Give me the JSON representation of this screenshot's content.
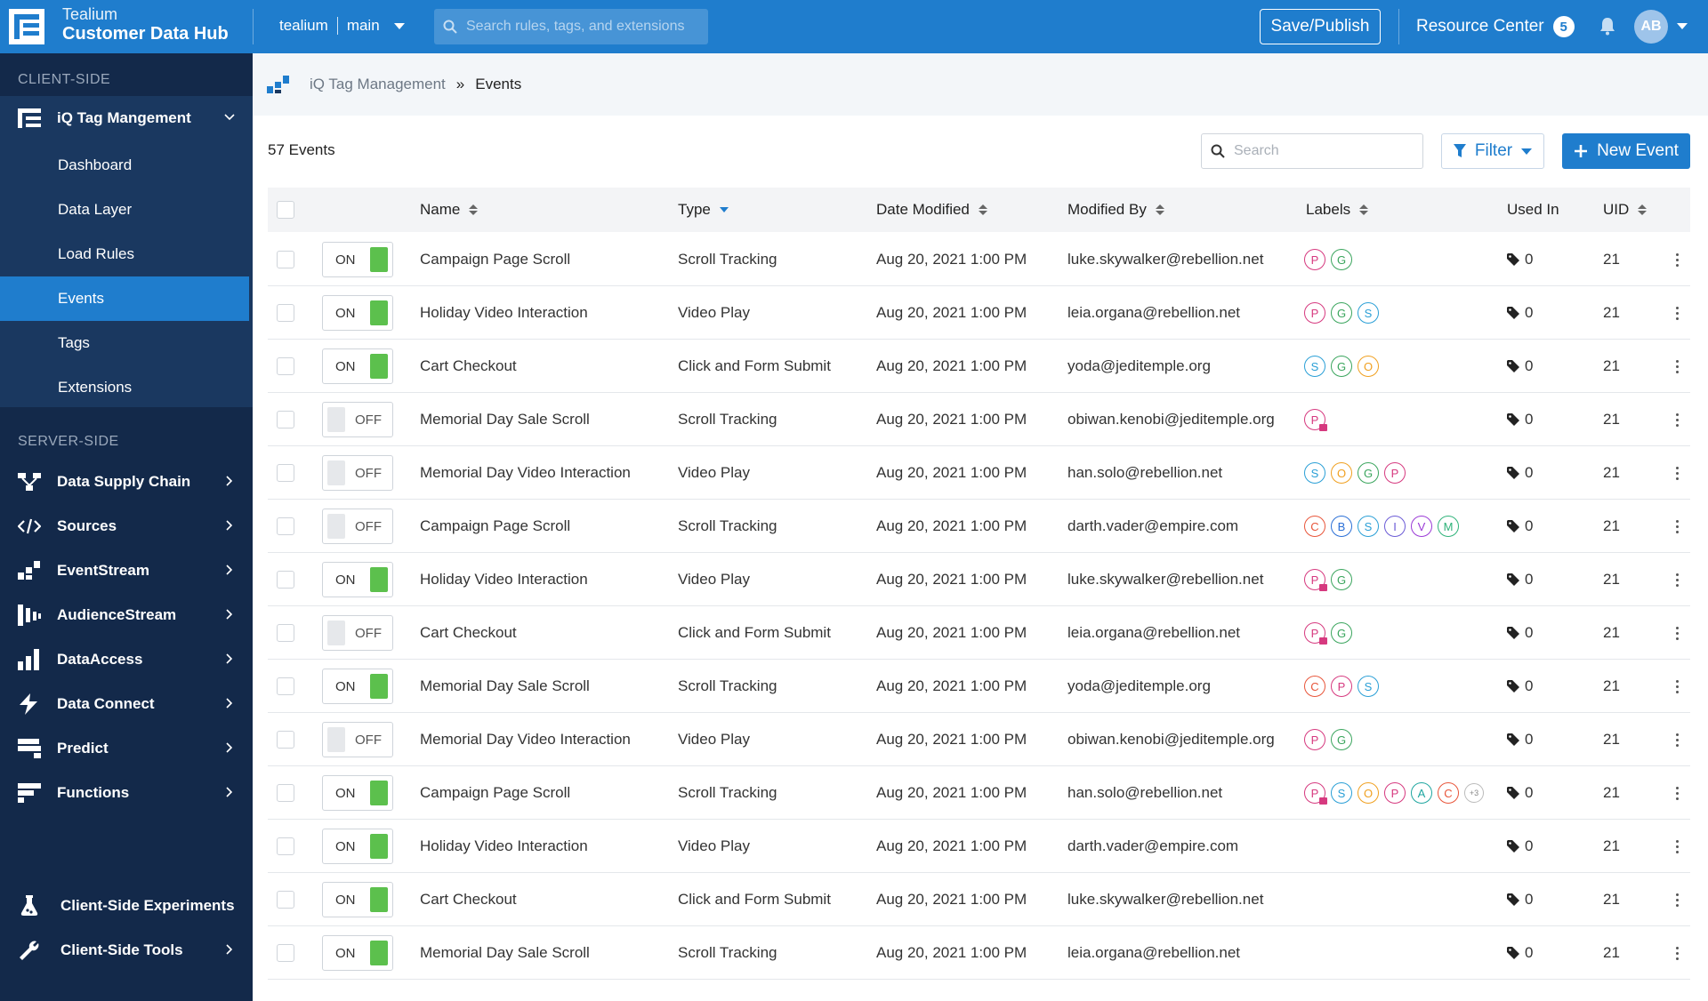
{
  "header": {
    "brand_line1": "Tealium",
    "brand_line2": "Customer Data Hub",
    "account": "tealium",
    "profile": "main",
    "search_placeholder": "Search rules, tags, and extensions",
    "save_label": "Save/Publish",
    "resource_center": "Resource Center",
    "resource_count": "5",
    "avatar_initials": "AB"
  },
  "sidebar": {
    "client_title": "CLIENT-SIDE",
    "iq_label": "iQ Tag Mangement",
    "sub_items": [
      {
        "label": "Dashboard"
      },
      {
        "label": "Data Layer"
      },
      {
        "label": "Load Rules"
      },
      {
        "label": "Events"
      },
      {
        "label": "Tags"
      },
      {
        "label": "Extensions"
      }
    ],
    "server_title": "SERVER-SIDE",
    "server_items": [
      {
        "label": "Data Supply Chain",
        "icon": "data-supply-chain-icon"
      },
      {
        "label": "Sources",
        "icon": "sources-code-icon"
      },
      {
        "label": "EventStream",
        "icon": "eventstream-icon"
      },
      {
        "label": "AudienceStream",
        "icon": "audiencestream-icon"
      },
      {
        "label": "DataAccess",
        "icon": "dataaccess-bar-icon"
      },
      {
        "label": "Data Connect",
        "icon": "data-connect-icon"
      },
      {
        "label": "Predict",
        "icon": "predict-icon"
      },
      {
        "label": "Functions",
        "icon": "functions-icon"
      }
    ],
    "bottom_items": [
      {
        "label": "Client-Side Experiments"
      },
      {
        "label": "Client-Side Tools"
      }
    ]
  },
  "breadcrumb": {
    "parent": "iQ Tag Management",
    "separator": "»",
    "current": "Events"
  },
  "toolbar": {
    "count_label": "57 Events",
    "search_placeholder": "Search",
    "filter_label": "Filter",
    "new_label": "New Event"
  },
  "table": {
    "columns": {
      "name": "Name",
      "type": "Type",
      "date": "Date Modified",
      "modified_by": "Modified By",
      "labels": "Labels",
      "used_in": "Used In",
      "uid": "UID"
    },
    "rows": [
      {
        "status": "ON",
        "name": "Campaign Page Scroll",
        "type": "Scroll Tracking",
        "date": "Aug 20, 2021 1:00 PM",
        "by": "luke.skywalker@rebellion.net",
        "labels": [
          "P",
          "G"
        ],
        "used": "0",
        "uid": "21"
      },
      {
        "status": "ON",
        "name": "Holiday Video Interaction",
        "type": "Video Play",
        "date": "Aug 20, 2021 1:00 PM",
        "by": "leia.organa@rebellion.net",
        "labels": [
          "P",
          "G",
          "S"
        ],
        "used": "0",
        "uid": "21"
      },
      {
        "status": "ON",
        "name": "Cart Checkout",
        "type": "Click and Form Submit",
        "date": "Aug 20, 2021 1:00 PM",
        "by": "yoda@jeditemple.org",
        "labels": [
          "S",
          "G",
          "O"
        ],
        "used": "0",
        "uid": "21"
      },
      {
        "status": "OFF",
        "name": "Memorial Day Sale Scroll",
        "type": "Scroll Tracking",
        "date": "Aug 20, 2021 1:00 PM",
        "by": "obiwan.kenobi@jeditemple.org",
        "labels": [
          "P*"
        ],
        "used": "0",
        "uid": "21"
      },
      {
        "status": "OFF",
        "name": "Memorial Day Video Interaction",
        "type": "Video Play",
        "date": "Aug 20, 2021 1:00 PM",
        "by": "han.solo@rebellion.net",
        "labels": [
          "S",
          "O",
          "G",
          "P"
        ],
        "used": "0",
        "uid": "21"
      },
      {
        "status": "OFF",
        "name": "Campaign Page Scroll",
        "type": "Scroll Tracking",
        "date": "Aug 20, 2021 1:00 PM",
        "by": "darth.vader@empire.com",
        "labels": [
          "C",
          "B",
          "S",
          "I",
          "V",
          "M"
        ],
        "used": "0",
        "uid": "21"
      },
      {
        "status": "ON",
        "name": "Holiday Video Interaction",
        "type": "Video Play",
        "date": "Aug 20, 2021 1:00 PM",
        "by": "luke.skywalker@rebellion.net",
        "labels": [
          "P*",
          "G"
        ],
        "used": "0",
        "uid": "21"
      },
      {
        "status": "OFF",
        "name": "Cart Checkout",
        "type": "Click and Form Submit",
        "date": "Aug 20, 2021 1:00 PM",
        "by": "leia.organa@rebellion.net",
        "labels": [
          "P*",
          "G"
        ],
        "used": "0",
        "uid": "21"
      },
      {
        "status": "ON",
        "name": "Memorial Day Sale Scroll",
        "type": "Scroll Tracking",
        "date": "Aug 20, 2021 1:00 PM",
        "by": "yoda@jeditemple.org",
        "labels": [
          "C",
          "P",
          "S"
        ],
        "used": "0",
        "uid": "21"
      },
      {
        "status": "OFF",
        "name": "Memorial Day Video Interaction",
        "type": "Video Play",
        "date": "Aug 20, 2021 1:00 PM",
        "by": "obiwan.kenobi@jeditemple.org",
        "labels": [
          "P",
          "G"
        ],
        "used": "0",
        "uid": "21"
      },
      {
        "status": "ON",
        "name": "Campaign Page Scroll",
        "type": "Scroll Tracking",
        "date": "Aug 20, 2021 1:00 PM",
        "by": "han.solo@rebellion.net",
        "labels": [
          "P*",
          "S",
          "O",
          "P",
          "A",
          "C",
          "+3"
        ],
        "used": "0",
        "uid": "21"
      },
      {
        "status": "ON",
        "name": "Holiday Video Interaction",
        "type": "Video Play",
        "date": "Aug 20, 2021 1:00 PM",
        "by": "darth.vader@empire.com",
        "labels": [],
        "used": "0",
        "uid": "21"
      },
      {
        "status": "ON",
        "name": "Cart Checkout",
        "type": "Click and Form Submit",
        "date": "Aug 20, 2021 1:00 PM",
        "by": "luke.skywalker@rebellion.net",
        "labels": [],
        "used": "0",
        "uid": "21"
      },
      {
        "status": "ON",
        "name": "Memorial Day Sale Scroll",
        "type": "Scroll Tracking",
        "date": "Aug 20, 2021 1:00 PM",
        "by": "leia.organa@rebellion.net",
        "labels": [],
        "used": "0",
        "uid": "21"
      }
    ]
  },
  "label_colors": {
    "P": "#d6397f",
    "G": "#3aa55d",
    "S": "#2a9fd6",
    "O": "#f0a020",
    "C": "#e8553a",
    "B": "#2a6fd6",
    "I": "#6b5bd6",
    "V": "#9a3ad6",
    "M": "#2fb37a",
    "A": "#1fa6a0"
  },
  "colors": {
    "header_bg": "#1f7dcd",
    "sidebar_bg": "#13294a",
    "sidebar_active": "#1f7dcd",
    "toggle_on": "#5cc04d"
  }
}
